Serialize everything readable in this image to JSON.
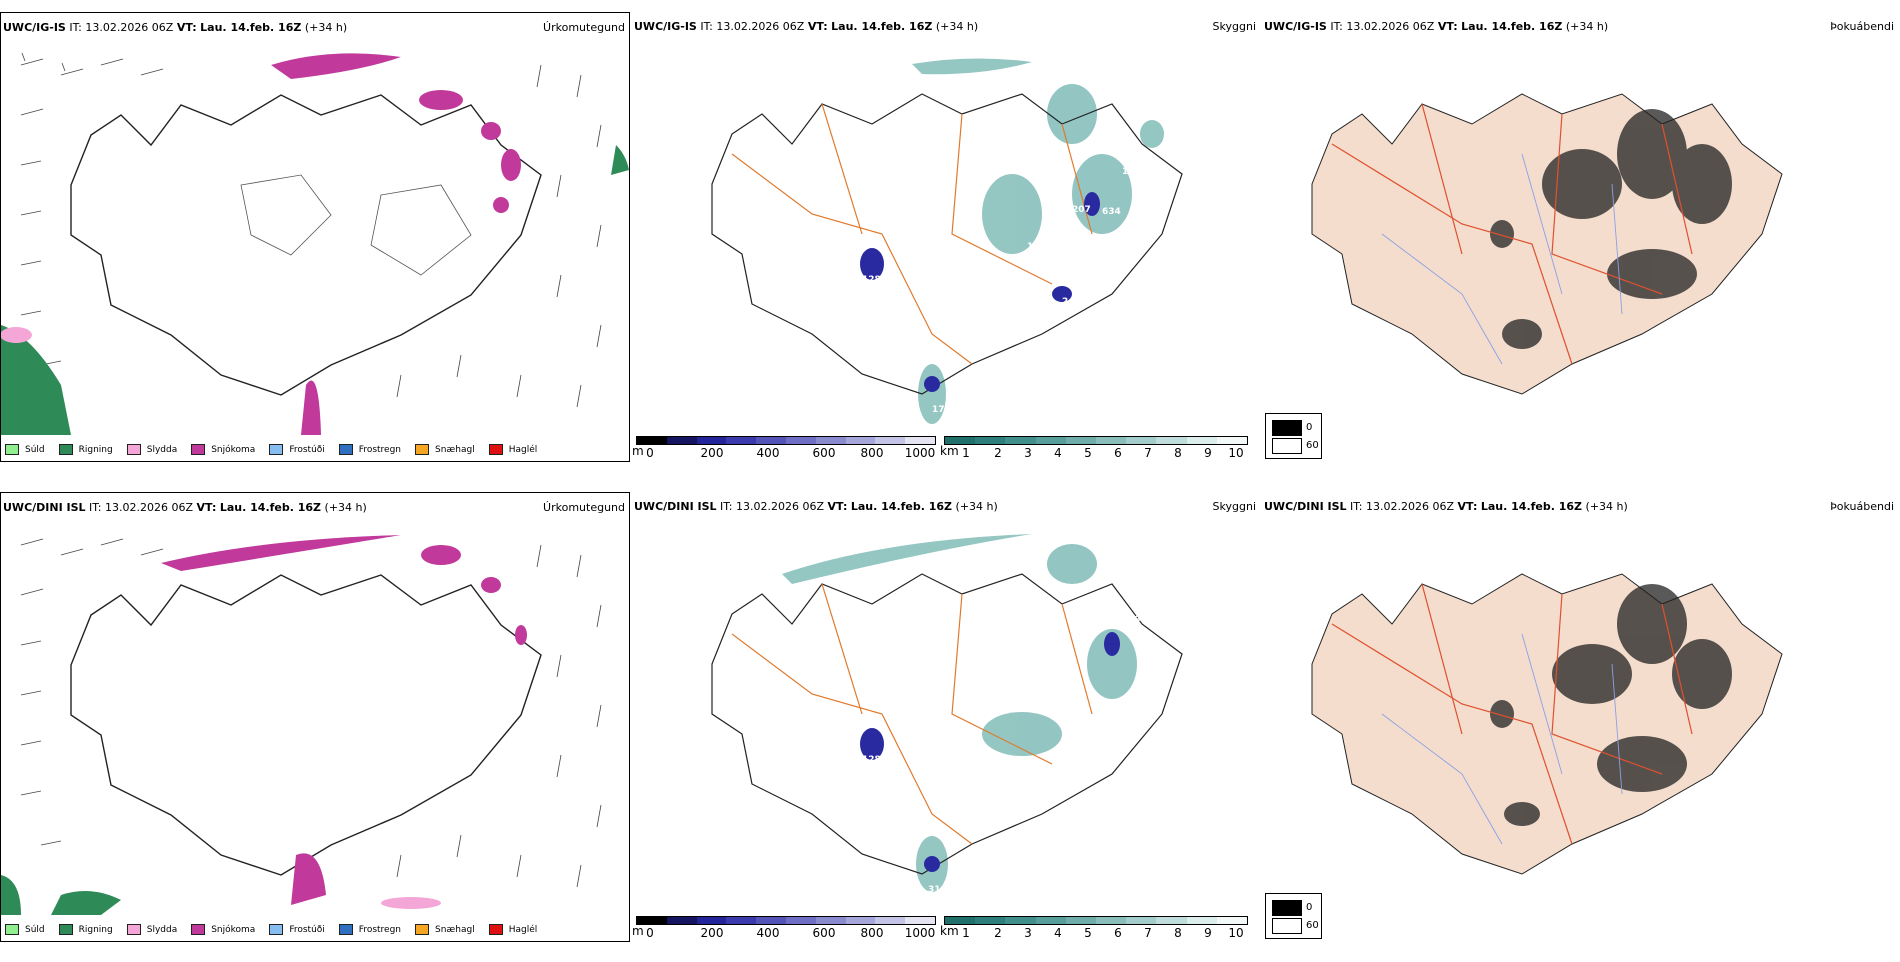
{
  "rows": [
    {
      "model": "UWC/IG-IS",
      "issue_label": "IT:",
      "issue_time": "13.02.2026 06Z",
      "valid_label": "VT:",
      "valid_time": "Lau. 14.feb. 16Z",
      "lead": "(+34 h)",
      "cloud_labels": [
        "128",
        "41",
        "176",
        "207",
        "634",
        "240",
        "163",
        "133"
      ]
    },
    {
      "model": "UWC/DINI ISL",
      "issue_label": "IT:",
      "issue_time": "13.02.2026 06Z",
      "valid_label": "VT:",
      "valid_time": "Lau. 14.feb. 16Z",
      "lead": "(+34 h)",
      "cloud_labels": [
        "128",
        "18",
        "316",
        "389",
        "333"
      ]
    }
  ],
  "panel_titles": {
    "precip": "Úrkomutegund",
    "cloud": "Skyggni",
    "fog": "Þokuábendi"
  },
  "precip_legend": [
    {
      "label": "Súld",
      "color": "#90ee90"
    },
    {
      "label": "Rigning",
      "color": "#2e8b57"
    },
    {
      "label": "Slydda",
      "color": "#f4a6d7"
    },
    {
      "label": "Snjókoma",
      "color": "#c0399b"
    },
    {
      "label": "Frostúði",
      "color": "#87bdf0"
    },
    {
      "label": "Frostregn",
      "color": "#2f6fbf"
    },
    {
      "label": "Snæhagl",
      "color": "#f5a623"
    },
    {
      "label": "Haglél",
      "color": "#e01010"
    }
  ],
  "cloud_base_scale": {
    "unit": "m",
    "ticks": [
      "0",
      "200",
      "400",
      "600",
      "800",
      "1000"
    ],
    "colors": [
      "#000000",
      "#141460",
      "#24249a",
      "#3a3aac",
      "#5454b8",
      "#6e6ec4",
      "#8a8acf",
      "#a6a6da",
      "#c4c4e6",
      "#e4e4f3"
    ]
  },
  "visibility_scale": {
    "unit": "km",
    "ticks": [
      "1",
      "2",
      "3",
      "4",
      "5",
      "6",
      "7",
      "8",
      "9",
      "10"
    ],
    "colors": [
      "#1f6f6b",
      "#2e7f7b",
      "#418f8b",
      "#579d99",
      "#6eada9",
      "#88bdb9",
      "#a3cdca",
      "#bfdedb",
      "#dbeeec",
      "#f3f9f9"
    ]
  },
  "fog_legend": {
    "high": "0",
    "low": "60"
  },
  "colors": {
    "snow": "#c0399b",
    "rain": "#2e8b57",
    "sleet": "#f4a6d7",
    "visibility": "#5aa7a2",
    "cloudbase": "#3a3aac",
    "land": "#f4ddcc",
    "roads": "#e07a2e"
  }
}
